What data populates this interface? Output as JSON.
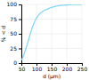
{
  "chart_data": {
    "type": "line",
    "xlabel": "d (µm)",
    "ylabel": "% < d",
    "x": [
      50,
      55,
      60,
      65,
      70,
      75,
      80,
      85,
      90,
      95,
      100,
      110,
      120,
      130,
      140,
      150,
      160,
      170,
      180,
      190,
      200,
      210,
      220,
      230,
      240,
      250
    ],
    "values": [
      5,
      10,
      17,
      25,
      33,
      42,
      51,
      59,
      66,
      72,
      77,
      84,
      88,
      91,
      93,
      95,
      96.5,
      97.5,
      98.2,
      98.8,
      99.2,
      99.5,
      99.7,
      99.8,
      99.9,
      100
    ],
    "color": "#7dd6f0",
    "xlim": [
      50,
      250
    ],
    "ylim": [
      0,
      100
    ],
    "xticks": [
      50,
      100,
      150,
      200,
      250
    ],
    "yticks": [
      0,
      25,
      50,
      75,
      100
    ],
    "grid": true
  }
}
